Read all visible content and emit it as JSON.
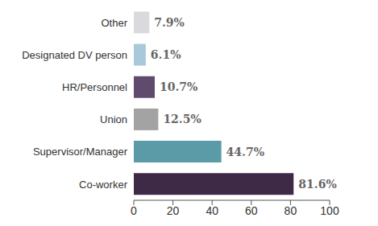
{
  "chart_data": {
    "type": "bar",
    "orientation": "horizontal",
    "categories": [
      "Other",
      "Designated DV person",
      "HR/Personnel",
      "Union",
      "Supervisor/Manager",
      "Co-worker"
    ],
    "values": [
      7.9,
      6.1,
      10.7,
      12.5,
      44.7,
      81.6
    ],
    "value_labels": [
      "7.9%",
      "6.1%",
      "10.7%",
      "12.5%",
      "44.7%",
      "81.6%"
    ],
    "colors": [
      "#d9d9de",
      "#a9c8da",
      "#5f4b6e",
      "#a3a3a3",
      "#5b9ba8",
      "#3e2a47"
    ],
    "xlim": [
      0,
      100
    ],
    "xticks": [
      0,
      20,
      40,
      60,
      80,
      100
    ],
    "data_labels": true,
    "grid": false
  }
}
